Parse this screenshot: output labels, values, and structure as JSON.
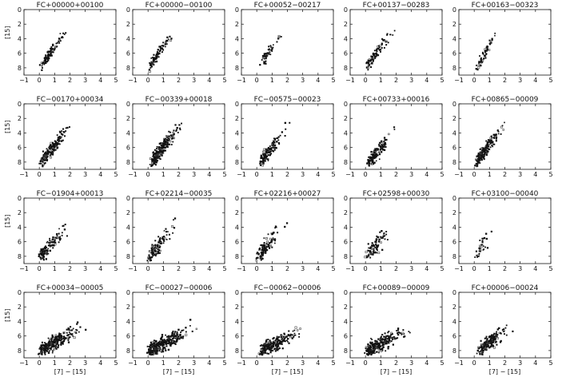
{
  "chart_data": {
    "type": "scatter",
    "x_axis_label": "[7] − [15]",
    "y_axis_label": "[15]",
    "x_ticks": [
      "−1",
      "0",
      "1",
      "2",
      "3",
      "4",
      "5"
    ],
    "y_ticks": [
      "0",
      "2",
      "4",
      "6",
      "8"
    ],
    "xlim": [
      -1,
      5
    ],
    "ylim": [
      0,
      9
    ],
    "y_inverted": true,
    "panels": [
      {
        "title": "FC+00000+00100",
        "cloud": {
          "x0": 0.2,
          "y0": 7.5,
          "slope": 3.2,
          "spread": 0.8,
          "n": 90,
          "xmax": 2.6
        }
      },
      {
        "title": "FC+00000−00100",
        "cloud": {
          "x0": 0.2,
          "y0": 7.5,
          "slope": 3.0,
          "spread": 0.8,
          "n": 80,
          "xmax": 2.4
        }
      },
      {
        "title": "FC+00052−00217",
        "cloud": {
          "x0": 0.3,
          "y0": 7.2,
          "slope": 2.8,
          "spread": 1.0,
          "n": 45,
          "xmax": 2.5
        }
      },
      {
        "title": "FC+00137−00283",
        "cloud": {
          "x0": 0.2,
          "y0": 7.3,
          "slope": 3.2,
          "spread": 0.9,
          "n": 80,
          "xmax": 2.8
        }
      },
      {
        "title": "FC+00163−00323",
        "cloud": {
          "x0": 0.3,
          "y0": 7.5,
          "slope": 3.4,
          "spread": 0.9,
          "n": 55,
          "xmax": 2.3
        }
      },
      {
        "title": "FC−00170+00034",
        "cloud": {
          "x0": 0.2,
          "y0": 7.8,
          "slope": 3.3,
          "spread": 1.0,
          "n": 170,
          "xmax": 3.0
        }
      },
      {
        "title": "FC−00339+00018",
        "cloud": {
          "x0": 0.3,
          "y0": 7.8,
          "slope": 3.5,
          "spread": 1.1,
          "n": 230,
          "xmax": 3.2
        }
      },
      {
        "title": "FC−00575−00023",
        "cloud": {
          "x0": 0.3,
          "y0": 7.8,
          "slope": 3.0,
          "spread": 1.1,
          "n": 130,
          "xmax": 3.0
        }
      },
      {
        "title": "FC+00733+00016",
        "cloud": {
          "x0": 0.3,
          "y0": 7.8,
          "slope": 2.7,
          "spread": 1.2,
          "n": 120,
          "xmax": 2.8
        }
      },
      {
        "title": "FC+00865−00009",
        "cloud": {
          "x0": 0.2,
          "y0": 7.8,
          "slope": 3.4,
          "spread": 1.0,
          "n": 190,
          "xmax": 2.9
        }
      },
      {
        "title": "FC−01904+00013",
        "cloud": {
          "x0": 0.1,
          "y0": 7.9,
          "slope": 2.7,
          "spread": 1.3,
          "n": 110,
          "xmax": 2.8
        }
      },
      {
        "title": "FC+02214−00035",
        "cloud": {
          "x0": 0.1,
          "y0": 7.9,
          "slope": 3.0,
          "spread": 1.3,
          "n": 100,
          "xmax": 2.7
        }
      },
      {
        "title": "FC+02216+00027",
        "cloud": {
          "x0": 0.1,
          "y0": 7.9,
          "slope": 3.0,
          "spread": 1.3,
          "n": 110,
          "xmax": 2.7
        }
      },
      {
        "title": "FC+02598+00030",
        "cloud": {
          "x0": 0.1,
          "y0": 7.8,
          "slope": 2.5,
          "spread": 1.3,
          "n": 85,
          "xmax": 2.6
        }
      },
      {
        "title": "FC+03100−00040",
        "cloud": {
          "x0": 0.2,
          "y0": 7.5,
          "slope": 2.2,
          "spread": 1.2,
          "n": 30,
          "xmax": 2.0
        }
      },
      {
        "title": "FC+00034−00005",
        "cloud": {
          "x0": 0.1,
          "y0": 8.0,
          "slope": 2.3,
          "spread": 1.1,
          "n": 260,
          "xmax": 4.5
        }
      },
      {
        "title": "FC−00027−00006",
        "cloud": {
          "x0": 0.1,
          "y0": 8.0,
          "slope": 2.3,
          "spread": 1.1,
          "n": 300,
          "xmax": 4.8
        }
      },
      {
        "title": "FC−00062−00006",
        "cloud": {
          "x0": 0.3,
          "y0": 8.0,
          "slope": 2.0,
          "spread": 1.1,
          "n": 230,
          "xmax": 4.5
        }
      },
      {
        "title": "FC+00089−00009",
        "cloud": {
          "x0": 0.1,
          "y0": 8.0,
          "slope": 2.0,
          "spread": 1.1,
          "n": 240,
          "xmax": 4.3
        }
      },
      {
        "title": "FC+00006−00024",
        "cloud": {
          "x0": 0.3,
          "y0": 8.0,
          "slope": 2.5,
          "spread": 1.1,
          "n": 170,
          "xmax": 3.8
        }
      }
    ]
  }
}
